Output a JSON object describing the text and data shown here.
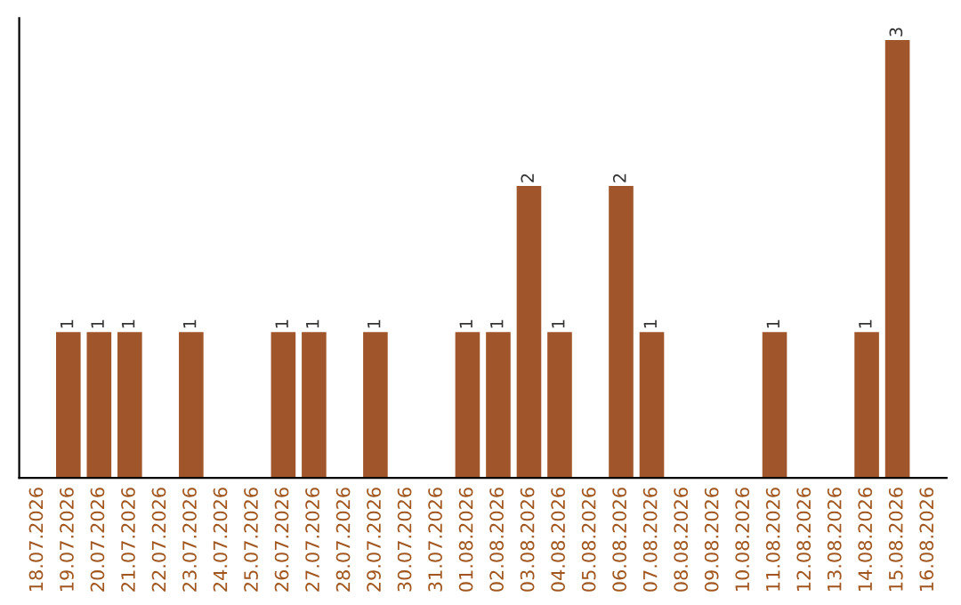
{
  "chart_data": {
    "type": "bar",
    "categories": [
      "18.07.2026",
      "19.07.2026",
      "20.07.2026",
      "21.07.2026",
      "22.07.2026",
      "23.07.2026",
      "24.07.2026",
      "25.07.2026",
      "26.07.2026",
      "27.07.2026",
      "28.07.2026",
      "29.07.2026",
      "30.07.2026",
      "31.07.2026",
      "01.08.2026",
      "02.08.2026",
      "03.08.2026",
      "04.08.2026",
      "05.08.2026",
      "06.08.2026",
      "07.08.2026",
      "08.08.2026",
      "09.08.2026",
      "10.08.2026",
      "11.08.2026",
      "12.08.2026",
      "13.08.2026",
      "14.08.2026",
      "15.08.2026",
      "16.08.2026"
    ],
    "values": [
      0,
      1,
      1,
      1,
      0,
      1,
      0,
      0,
      1,
      1,
      0,
      1,
      0,
      0,
      1,
      1,
      2,
      1,
      0,
      2,
      1,
      0,
      0,
      0,
      1,
      0,
      0,
      1,
      3,
      0
    ],
    "color": "#a0562a",
    "value_labels": [
      null,
      "1",
      "1",
      "1",
      null,
      "1",
      null,
      null,
      "1",
      "1",
      null,
      "1",
      null,
      null,
      "1",
      "1",
      "2",
      "1",
      null,
      "2",
      "1",
      null,
      null,
      null,
      "1",
      null,
      null,
      "1",
      "3",
      null
    ],
    "tick_labels": "x",
    "grid": false,
    "legend": false
  }
}
